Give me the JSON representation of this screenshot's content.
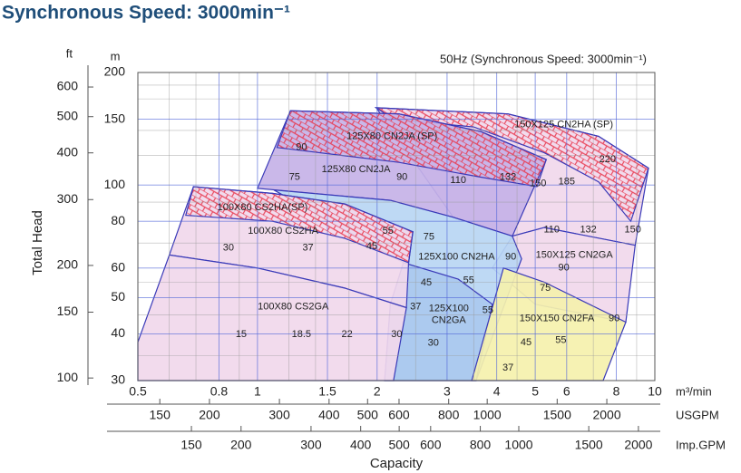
{
  "title": "Synchronous Speed: 3000min⁻¹",
  "chart_data": {
    "type": "region",
    "subtitle": "50Hz (Synchronous Speed: 3000min⁻¹)",
    "xlabel": "Capacity",
    "ylabel": "Total Head",
    "x_unit": "m³/min",
    "y_unit": "m",
    "y2_unit": "ft",
    "log_x": true,
    "log_y": true,
    "xlim": [
      0.5,
      10
    ],
    "ylim": [
      30,
      200
    ],
    "xticks": [
      0.5,
      0.8,
      1,
      1.5,
      2,
      3,
      4,
      5,
      6,
      8,
      10
    ],
    "yticks": [
      30,
      40,
      50,
      60,
      80,
      100,
      150,
      200
    ],
    "xgrid": [
      0.6,
      0.7,
      0.9,
      1.2,
      1.4,
      1.7,
      2.5,
      3.5,
      4.5,
      7,
      9
    ],
    "ygrid": [
      35,
      45,
      55,
      70,
      90,
      120,
      140,
      170,
      185
    ],
    "y2lim": [
      98.43,
      656.17
    ],
    "y2ticks": [
      100,
      150,
      200,
      300,
      400,
      500,
      600
    ],
    "secondary_x": [
      {
        "name": "USGPM",
        "xlim": [
          132.09,
          2641.7
        ],
        "xticks": [
          150,
          200,
          300,
          400,
          500,
          600,
          800,
          1000,
          1500,
          2000
        ]
      },
      {
        "name": "Imp.GPM",
        "xlim": [
          109.98,
          2199.7
        ],
        "xticks": [
          150,
          200,
          300,
          400,
          500,
          600,
          800,
          1000,
          1500,
          2000
        ]
      }
    ],
    "regions": [
      {
        "color": "#f1d8ec",
        "points": [
          [
            1.99,
            161
          ],
          [
            4.27,
            155
          ],
          [
            7.22,
            135
          ],
          [
            9.64,
            111
          ],
          [
            8.92,
            69
          ],
          [
            5.27,
            77
          ],
          [
            4.38,
            73
          ],
          [
            3.11,
            82
          ]
        ]
      },
      {
        "name": "150X125 CN2HA (SP)",
        "label_x": 5.9,
        "label_y": 145,
        "color": "#e8394f",
        "hatch": true,
        "points": [
          [
            1.99,
            161
          ],
          [
            4.27,
            155
          ],
          [
            7.22,
            135
          ],
          [
            9.64,
            111
          ],
          [
            8.7,
            80
          ],
          [
            7.22,
            102
          ],
          [
            5.27,
            122
          ],
          [
            3.5,
            143
          ],
          [
            2.2,
            150
          ]
        ]
      },
      {
        "name": "150X125 CN2GA",
        "label_x": 6.27,
        "label_y": 64.9,
        "color": "#f1d8ec",
        "points": [
          [
            4.38,
            73
          ],
          [
            5.27,
            77
          ],
          [
            8.92,
            69
          ],
          [
            8.45,
            43
          ],
          [
            5.0,
            48
          ],
          [
            3.9,
            60
          ]
        ]
      },
      {
        "name": "125X80 CN2JA",
        "label_x": 1.77,
        "label_y": 110,
        "color": "#c6b2e7",
        "points": [
          [
            1.0,
            98
          ],
          [
            1.21,
            158
          ],
          [
            2.27,
            155
          ],
          [
            3.65,
            139
          ],
          [
            5.33,
            117
          ],
          [
            4.38,
            73
          ],
          [
            3.11,
            82
          ],
          [
            2.16,
            91
          ]
        ]
      },
      {
        "name": "125X80 CN2JA (SP)",
        "label_x": 2.18,
        "label_y": 135,
        "color": "#e8394f",
        "hatch": true,
        "points": [
          [
            1.21,
            158
          ],
          [
            2.27,
            155
          ],
          [
            3.65,
            139
          ],
          [
            5.33,
            117
          ],
          [
            5.05,
            99
          ],
          [
            3.65,
            105
          ],
          [
            2.27,
            115
          ],
          [
            1.12,
            126
          ]
        ]
      },
      {
        "name": "125X100 CN2HA",
        "label_x": 3.17,
        "label_y": 64.2,
        "color": "#b9d6f3",
        "points": [
          [
            1.1,
            97
          ],
          [
            2.16,
            91
          ],
          [
            3.11,
            82
          ],
          [
            4.38,
            73
          ],
          [
            4.62,
            63.5
          ],
          [
            3.55,
            30
          ],
          [
            2.09,
            30
          ],
          [
            2.16,
            48
          ],
          [
            2.33,
            62
          ]
        ]
      },
      {
        "name": [
          "125X100",
          "CN2GA"
        ],
        "label_x": 3.03,
        "label_y": 45,
        "color": "#aac9ee",
        "points": [
          [
            2.16,
            48
          ],
          [
            2.33,
            62
          ],
          [
            3.2,
            56
          ],
          [
            3.9,
            48
          ],
          [
            3.55,
            30
          ],
          [
            2.09,
            30
          ]
        ]
      },
      {
        "name": "150X150 CN2FA",
        "label_x": 5.67,
        "label_y": 43.9,
        "color": "#f5f1ad",
        "points": [
          [
            3.46,
            30
          ],
          [
            4.16,
            60
          ],
          [
            5.27,
            55
          ],
          [
            8.45,
            43
          ],
          [
            7.41,
            30
          ]
        ]
      },
      {
        "name": "100X80 CS2HA",
        "label_x": 1.16,
        "label_y": 75.3,
        "color": "#f1d8ec",
        "points": [
          [
            0.6,
            65
          ],
          [
            0.69,
            99
          ],
          [
            1.09,
            95
          ],
          [
            1.66,
            89
          ],
          [
            2.46,
            75
          ],
          [
            2.4,
            62
          ],
          [
            2.37,
            47
          ],
          [
            1.66,
            53
          ],
          [
            1.0,
            60
          ]
        ]
      },
      {
        "name": "100X80 CS2HA(SP)",
        "label_x": 1.03,
        "label_y": 87,
        "color": "#e8394f",
        "hatch": true,
        "points": [
          [
            0.69,
            99
          ],
          [
            1.09,
            95
          ],
          [
            1.66,
            89
          ],
          [
            2.46,
            75
          ],
          [
            2.4,
            62
          ],
          [
            1.66,
            72
          ],
          [
            1.09,
            80
          ],
          [
            0.66,
            83
          ]
        ]
      },
      {
        "name": "100X80 CS2GA",
        "label_x": 1.23,
        "label_y": 47.2,
        "color": "#f1d8ec",
        "points": [
          [
            0.5,
            38
          ],
          [
            0.6,
            65
          ],
          [
            1.0,
            60
          ],
          [
            1.66,
            53
          ],
          [
            2.37,
            47
          ],
          [
            2.2,
            30
          ],
          [
            0.5,
            30
          ]
        ]
      }
    ],
    "annotations": [
      {
        "text": "90",
        "x": 1.29,
        "y": 126
      },
      {
        "text": "75",
        "x": 1.24,
        "y": 105
      },
      {
        "text": "90",
        "x": 2.31,
        "y": 105
      },
      {
        "text": "110",
        "x": 3.2,
        "y": 103
      },
      {
        "text": "132",
        "x": 4.27,
        "y": 105
      },
      {
        "text": "220",
        "x": 7.6,
        "y": 117
      },
      {
        "text": "185",
        "x": 6.0,
        "y": 102
      },
      {
        "text": "150",
        "x": 5.08,
        "y": 101
      },
      {
        "text": "150",
        "x": 8.8,
        "y": 76
      },
      {
        "text": "110",
        "x": 5.5,
        "y": 76
      },
      {
        "text": "132",
        "x": 6.8,
        "y": 76
      },
      {
        "text": "90",
        "x": 5.9,
        "y": 60
      },
      {
        "text": "75",
        "x": 5.3,
        "y": 53
      },
      {
        "text": "90",
        "x": 7.9,
        "y": 44
      },
      {
        "text": "55",
        "x": 5.8,
        "y": 38.4
      },
      {
        "text": "45",
        "x": 4.74,
        "y": 37.9
      },
      {
        "text": "37",
        "x": 4.27,
        "y": 32.4
      },
      {
        "text": "75",
        "x": 2.7,
        "y": 72.6
      },
      {
        "text": "90",
        "x": 4.34,
        "y": 64.2
      },
      {
        "text": "55",
        "x": 3.4,
        "y": 55.6
      },
      {
        "text": "45",
        "x": 2.66,
        "y": 54.8
      },
      {
        "text": "37",
        "x": 2.5,
        "y": 47.2
      },
      {
        "text": "55",
        "x": 3.8,
        "y": 46.2
      },
      {
        "text": "30",
        "x": 2.77,
        "y": 37.8
      },
      {
        "text": "55",
        "x": 2.13,
        "y": 75.3
      },
      {
        "text": "45",
        "x": 1.94,
        "y": 68.5
      },
      {
        "text": "37",
        "x": 1.34,
        "y": 67.9
      },
      {
        "text": "30",
        "x": 0.845,
        "y": 67.9
      },
      {
        "text": "15",
        "x": 0.91,
        "y": 39.9
      },
      {
        "text": "18.5",
        "x": 1.29,
        "y": 39.9
      },
      {
        "text": "22",
        "x": 1.68,
        "y": 39.9
      },
      {
        "text": "30",
        "x": 2.24,
        "y": 39.9
      }
    ]
  }
}
